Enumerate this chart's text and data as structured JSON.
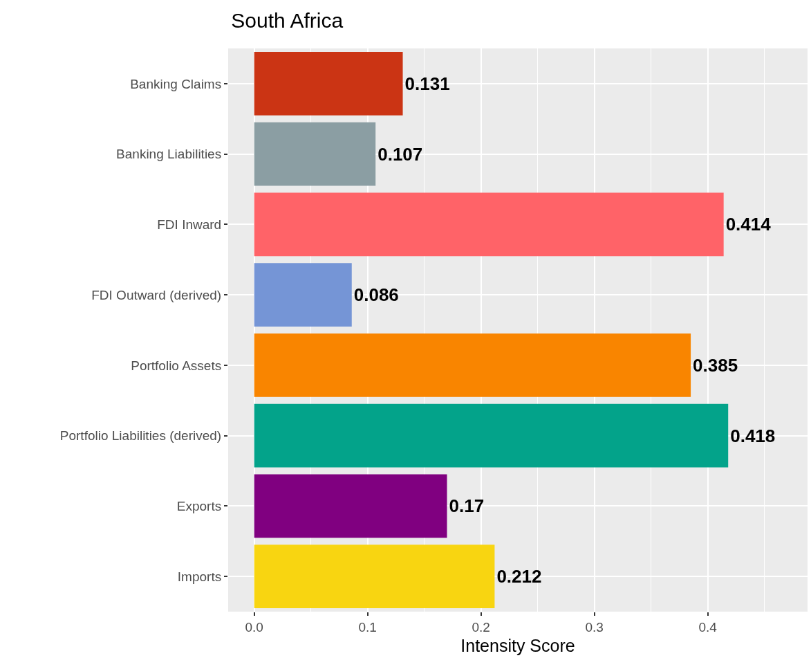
{
  "chart_data": {
    "type": "bar",
    "orientation": "horizontal",
    "title": "South Africa",
    "xlabel": "Intensity Score",
    "categories": [
      "Banking Claims",
      "Banking Liabilities",
      "FDI Inward",
      "FDI Outward (derived)",
      "Portfolio Assets",
      "Portfolio Liabilities (derived)",
      "Exports",
      "Imports"
    ],
    "values": [
      0.131,
      0.107,
      0.414,
      0.086,
      0.385,
      0.418,
      0.17,
      0.212
    ],
    "colors": [
      "#cb3414",
      "#8b9ea3",
      "#ff6368",
      "#7595d6",
      "#f98500",
      "#03a38a",
      "#800080",
      "#f8d511"
    ],
    "xlim": [
      -0.023,
      0.488
    ],
    "xticks": [
      {
        "value": 0,
        "label": "0.0"
      },
      0.1,
      0.2,
      0.3,
      0.4
    ],
    "grid": true,
    "data_labels": true
  }
}
